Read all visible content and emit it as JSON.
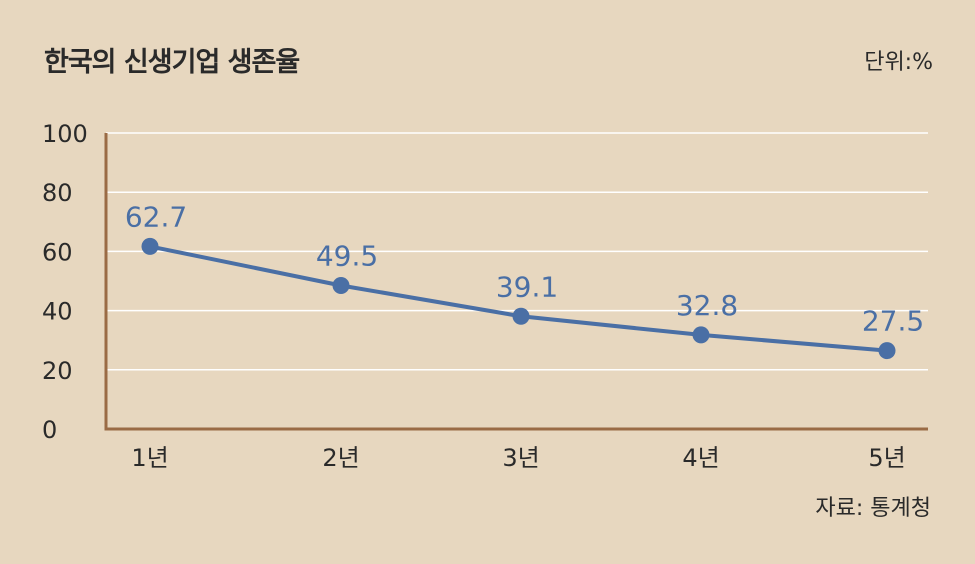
{
  "header": {
    "title": "한국의 신생기업 생존율",
    "unit": "단위:%"
  },
  "footer": {
    "source": "자료: 통계청"
  },
  "colors": {
    "background": "#e7d7bf",
    "series": "#4a6fa5",
    "axis": "#9a6b45",
    "grid": "#ffffff"
  },
  "chart_data": {
    "type": "line",
    "categories": [
      "1년",
      "2년",
      "3년",
      "4년",
      "5년"
    ],
    "series": [
      {
        "values": [
          62.7,
          49.5,
          39.1,
          32.8,
          27.5
        ]
      }
    ],
    "data_labels": [
      "62.7",
      "49.5",
      "39.1",
      "32.8",
      "27.5"
    ],
    "y_ticks": [
      "0",
      "20",
      "40",
      "60",
      "80",
      "100"
    ],
    "ylim": [
      0,
      100
    ],
    "grid": true,
    "legend": "none"
  }
}
